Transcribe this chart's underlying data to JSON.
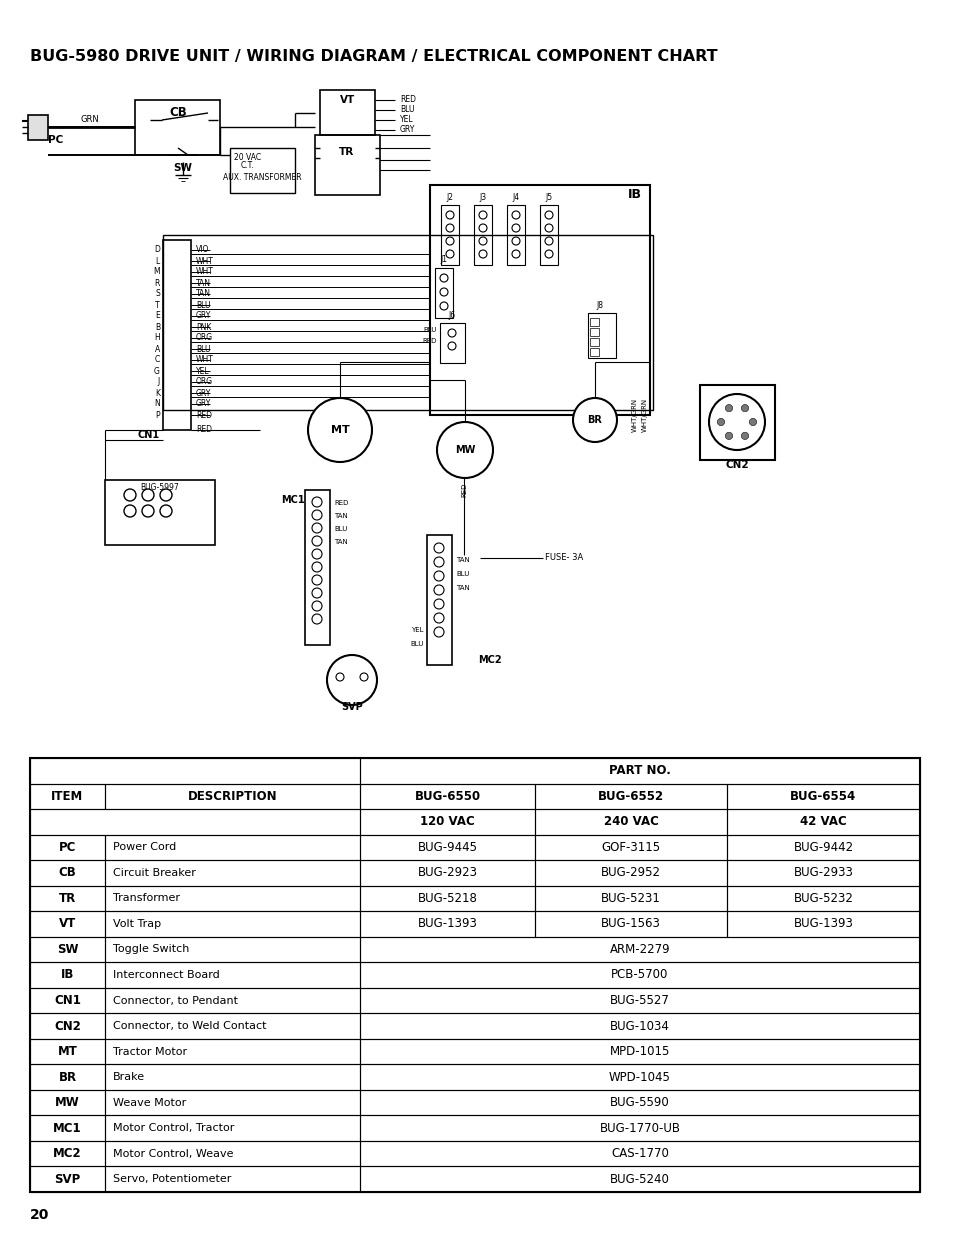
{
  "title": "BUG-5980 DRIVE UNIT / WIRING DIAGRAM / ELECTRICAL COMPONENT CHART",
  "page_number": "20",
  "bg_color": "#ffffff",
  "table": {
    "rows": [
      [
        "PC",
        "Power Cord",
        "BUG-9445",
        "GOF-3115",
        "BUG-9442"
      ],
      [
        "CB",
        "Circuit Breaker",
        "BUG-2923",
        "BUG-2952",
        "BUG-2933"
      ],
      [
        "TR",
        "Transformer",
        "BUG-5218",
        "BUG-5231",
        "BUG-5232"
      ],
      [
        "VT",
        "Volt Trap",
        "BUG-1393",
        "BUG-1563",
        "BUG-1393"
      ],
      [
        "SW",
        "Toggle Switch",
        "ARM-2279",
        "",
        ""
      ],
      [
        "IB",
        "Interconnect Board",
        "PCB-5700",
        "",
        ""
      ],
      [
        "CN1",
        "Connector, to Pendant",
        "BUG-5527",
        "",
        ""
      ],
      [
        "CN2",
        "Connector, to Weld Contact",
        "BUG-1034",
        "",
        ""
      ],
      [
        "MT",
        "Tractor Motor",
        "MPD-1015",
        "",
        ""
      ],
      [
        "BR",
        "Brake",
        "WPD-1045",
        "",
        ""
      ],
      [
        "MW",
        "Weave Motor",
        "BUG-5590",
        "",
        ""
      ],
      [
        "MC1",
        "Motor Control, Tractor",
        "BUG-1770-UB",
        "",
        ""
      ],
      [
        "MC2",
        "Motor Control, Weave",
        "CAS-1770",
        "",
        ""
      ],
      [
        "SVP",
        "Servo, Potentiometer",
        "BUG-5240",
        "",
        ""
      ]
    ],
    "merged_rows": [
      4,
      5,
      6,
      7,
      8,
      9,
      10,
      11,
      12,
      13
    ]
  }
}
